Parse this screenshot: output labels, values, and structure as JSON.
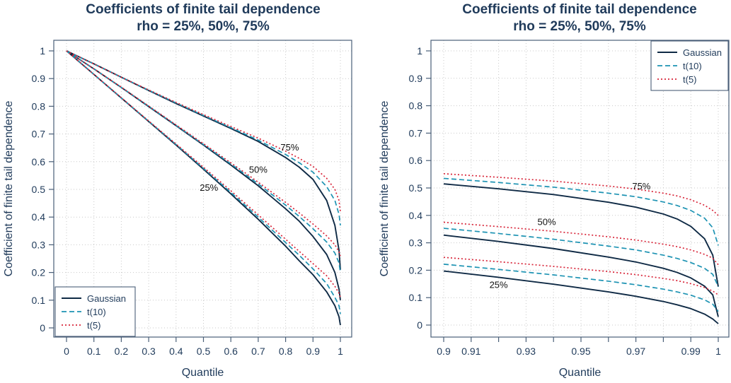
{
  "chart_data": [
    {
      "type": "line",
      "title_line1": "Coefficients of finite tail dependence",
      "title_line2": "rho = 25%, 50%, 75%",
      "xlabel": "Quantile",
      "ylabel": "Coefficient of finite tail dependence",
      "xlim": [
        0,
        1
      ],
      "ylim": [
        0,
        1
      ],
      "xticks": [
        0,
        0.1,
        0.2,
        0.3,
        0.4,
        0.5,
        0.6,
        0.7,
        0.8,
        0.9,
        1
      ],
      "xtick_labels": [
        "0",
        "0.1",
        "0.2",
        "0.3",
        "0.4",
        "0.5",
        "0.6",
        "0.7",
        "0.8",
        "0.9",
        "1"
      ],
      "yticks": [
        0,
        0.1,
        0.2,
        0.3,
        0.4,
        0.5,
        0.6,
        0.7,
        0.8,
        0.9,
        1
      ],
      "ytick_labels": [
        "0",
        "0.1",
        "0.2",
        "0.3",
        "0.4",
        "0.5",
        "0.6",
        "0.7",
        "0.8",
        "0.9",
        "1"
      ],
      "grid": true,
      "legend_position": "bottom-left",
      "legend": [
        "Gaussian",
        "t(10)",
        "t(5)"
      ],
      "x": [
        0,
        0.1,
        0.2,
        0.3,
        0.4,
        0.5,
        0.6,
        0.7,
        0.8,
        0.85,
        0.9,
        0.95,
        0.98,
        0.995,
        1
      ],
      "series": [
        {
          "name": "Gaussian",
          "rho": "75%",
          "style": "solid",
          "values": [
            1,
            0.953,
            0.905,
            0.857,
            0.81,
            0.765,
            0.72,
            0.673,
            0.615,
            0.58,
            0.536,
            0.46,
            0.37,
            0.28,
            0.21
          ]
        },
        {
          "name": "t(10)",
          "rho": "75%",
          "style": "dashed",
          "values": [
            1,
            0.953,
            0.905,
            0.858,
            0.812,
            0.767,
            0.723,
            0.678,
            0.626,
            0.596,
            0.562,
            0.51,
            0.46,
            0.41,
            0.37
          ]
        },
        {
          "name": "t(5)",
          "rho": "75%",
          "style": "dotted",
          "values": [
            1,
            0.953,
            0.905,
            0.859,
            0.814,
            0.77,
            0.727,
            0.685,
            0.638,
            0.612,
            0.583,
            0.54,
            0.5,
            0.46,
            0.42
          ]
        },
        {
          "name": "Gaussian",
          "rho": "50%",
          "style": "solid",
          "values": [
            1,
            0.935,
            0.868,
            0.799,
            0.73,
            0.66,
            0.588,
            0.513,
            0.43,
            0.385,
            0.33,
            0.265,
            0.2,
            0.14,
            0.1
          ]
        },
        {
          "name": "t(10)",
          "rho": "50%",
          "style": "dashed",
          "values": [
            1,
            0.935,
            0.868,
            0.8,
            0.731,
            0.662,
            0.592,
            0.52,
            0.443,
            0.402,
            0.358,
            0.31,
            0.27,
            0.235,
            0.2
          ]
        },
        {
          "name": "t(5)",
          "rho": "50%",
          "style": "dotted",
          "values": [
            1,
            0.935,
            0.869,
            0.801,
            0.733,
            0.665,
            0.596,
            0.526,
            0.453,
            0.415,
            0.375,
            0.332,
            0.3,
            0.275,
            0.26
          ]
        },
        {
          "name": "Gaussian",
          "rho": "25%",
          "style": "solid",
          "values": [
            1,
            0.915,
            0.83,
            0.745,
            0.66,
            0.573,
            0.484,
            0.392,
            0.295,
            0.242,
            0.192,
            0.13,
            0.08,
            0.04,
            0.01
          ]
        },
        {
          "name": "t(10)",
          "rho": "25%",
          "style": "dashed",
          "values": [
            1,
            0.915,
            0.83,
            0.746,
            0.662,
            0.576,
            0.489,
            0.4,
            0.308,
            0.262,
            0.213,
            0.16,
            0.11,
            0.08,
            0.05
          ]
        },
        {
          "name": "t(5)",
          "rho": "25%",
          "style": "dotted",
          "values": [
            1,
            0.915,
            0.831,
            0.747,
            0.664,
            0.58,
            0.495,
            0.408,
            0.32,
            0.276,
            0.232,
            0.188,
            0.15,
            0.125,
            0.11
          ]
        }
      ],
      "annotations": [
        {
          "text": "75%",
          "x": 0.815,
          "y": 0.64
        },
        {
          "text": "50%",
          "x": 0.7,
          "y": 0.56
        },
        {
          "text": "25%",
          "x": 0.52,
          "y": 0.495
        }
      ]
    },
    {
      "type": "line",
      "title_line1": "Coefficients of finite tail dependence",
      "title_line2": "rho = 25%, 50%, 75%",
      "xlabel": "Quantile",
      "ylabel": "Coefficient of finite tail dependence",
      "xlim": [
        0.9,
        1
      ],
      "ylim": [
        0,
        1
      ],
      "xticks": [
        0.9,
        0.91,
        0.92,
        0.93,
        0.94,
        0.95,
        0.96,
        0.97,
        0.98,
        0.99,
        1
      ],
      "xtick_labels": [
        "0.9",
        "0.91",
        "",
        "0.93",
        "",
        "0.95",
        "",
        "0.97",
        "",
        "0.99",
        "1"
      ],
      "yticks": [
        0,
        0.1,
        0.2,
        0.3,
        0.4,
        0.5,
        0.6,
        0.7,
        0.8,
        0.9,
        1
      ],
      "ytick_labels": [
        "0",
        "0.1",
        "0.2",
        "0.3",
        "0.4",
        "0.5",
        "0.6",
        "0.7",
        "0.8",
        "0.9",
        "1"
      ],
      "grid": true,
      "legend_position": "top-right",
      "legend": [
        "Gaussian",
        "t(10)",
        "t(5)"
      ],
      "x": [
        0.9,
        0.92,
        0.94,
        0.96,
        0.97,
        0.98,
        0.985,
        0.99,
        0.995,
        0.998,
        1
      ],
      "series": [
        {
          "name": "Gaussian",
          "rho": "75%",
          "style": "solid",
          "values": [
            0.515,
            0.497,
            0.476,
            0.448,
            0.43,
            0.405,
            0.387,
            0.36,
            0.315,
            0.255,
            0.14
          ]
        },
        {
          "name": "t(10)",
          "rho": "75%",
          "style": "dashed",
          "values": [
            0.535,
            0.52,
            0.503,
            0.481,
            0.468,
            0.449,
            0.436,
            0.418,
            0.39,
            0.355,
            0.29
          ]
        },
        {
          "name": "t(5)",
          "rho": "75%",
          "style": "dotted",
          "values": [
            0.552,
            0.539,
            0.525,
            0.507,
            0.496,
            0.481,
            0.471,
            0.457,
            0.437,
            0.418,
            0.4
          ]
        },
        {
          "name": "Gaussian",
          "rho": "50%",
          "style": "solid",
          "values": [
            0.328,
            0.305,
            0.279,
            0.248,
            0.23,
            0.207,
            0.192,
            0.172,
            0.142,
            0.11,
            0.03
          ]
        },
        {
          "name": "t(10)",
          "rho": "50%",
          "style": "dashed",
          "values": [
            0.353,
            0.334,
            0.313,
            0.288,
            0.274,
            0.255,
            0.243,
            0.228,
            0.207,
            0.185,
            0.14
          ]
        },
        {
          "name": "t(5)",
          "rho": "50%",
          "style": "dotted",
          "values": [
            0.375,
            0.359,
            0.342,
            0.322,
            0.31,
            0.295,
            0.286,
            0.274,
            0.258,
            0.244,
            0.22
          ]
        },
        {
          "name": "Gaussian",
          "rho": "25%",
          "style": "solid",
          "values": [
            0.197,
            0.174,
            0.149,
            0.121,
            0.105,
            0.086,
            0.074,
            0.06,
            0.04,
            0.022,
            0.005
          ]
        },
        {
          "name": "t(10)",
          "rho": "25%",
          "style": "dashed",
          "values": [
            0.222,
            0.203,
            0.183,
            0.16,
            0.147,
            0.131,
            0.121,
            0.109,
            0.092,
            0.076,
            0.05
          ]
        },
        {
          "name": "t(5)",
          "rho": "25%",
          "style": "dotted",
          "values": [
            0.247,
            0.231,
            0.214,
            0.195,
            0.184,
            0.17,
            0.162,
            0.151,
            0.137,
            0.124,
            0.11
          ]
        }
      ],
      "annotations": [
        {
          "text": "75%",
          "x": 0.972,
          "y": 0.495
        },
        {
          "text": "50%",
          "x": 0.9375,
          "y": 0.365
        },
        {
          "text": "25%",
          "x": 0.92,
          "y": 0.135
        }
      ]
    }
  ],
  "colors": {
    "Gaussian": "#0f2a45",
    "t(10)": "#1d93b3",
    "t(5)": "#d8263a",
    "text": "#1f3a5a",
    "axis": "#4a5f78",
    "grid": "#c9c9c9"
  }
}
